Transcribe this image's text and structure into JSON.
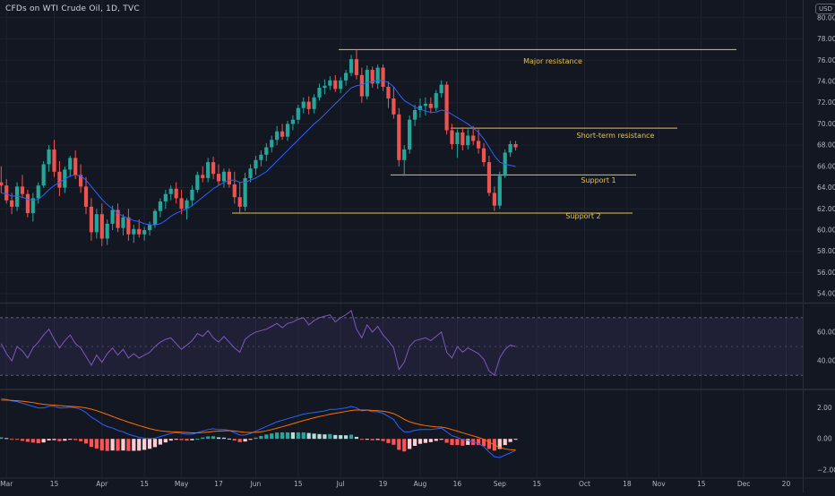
{
  "header": {
    "title": "CFDs on WTI Crude Oil, 1D, TVC",
    "currency_badge": "USD"
  },
  "colors": {
    "background": "#131722",
    "up": "#26a69a",
    "down": "#ef5350",
    "sma": "#2962ff",
    "levels": "#e6c24a",
    "rsi": "#7e57c2",
    "macd": "#2962ff",
    "signal": "#ff6d00"
  },
  "chart_data": [
    {
      "type": "candlestick",
      "name": "price",
      "ylim": [
        53,
        81
      ],
      "yticks": [
        "80.00",
        "78.00",
        "76.00",
        "74.00",
        "72.00",
        "70.00",
        "68.00",
        "66.00",
        "64.00",
        "62.00",
        "60.00",
        "58.00",
        "56.00",
        "54.00"
      ],
      "ytick_values": [
        80,
        78,
        76,
        74,
        72,
        70,
        68,
        66,
        64,
        62,
        60,
        58,
        56,
        54
      ],
      "candles": [
        [
          64.5,
          66,
          63.5,
          64.2
        ],
        [
          64.2,
          64.8,
          62.5,
          62.8
        ],
        [
          62.8,
          63.5,
          61.5,
          62.2
        ],
        [
          62.2,
          64.5,
          61.8,
          64.1
        ],
        [
          64.1,
          65.2,
          63,
          63.4
        ],
        [
          63.4,
          63.8,
          61.2,
          61.6
        ],
        [
          61.6,
          63.5,
          60.8,
          63
        ],
        [
          63,
          64.5,
          62.5,
          64.2
        ],
        [
          64.2,
          66.5,
          64,
          66.2
        ],
        [
          66.2,
          68,
          65.5,
          67.6
        ],
        [
          67.6,
          68.5,
          65,
          65.5
        ],
        [
          65.5,
          66.5,
          63.2,
          64
        ],
        [
          64,
          66,
          63.5,
          65.7
        ],
        [
          65.7,
          67,
          65,
          66.8
        ],
        [
          66.8,
          67.5,
          64.8,
          65.2
        ],
        [
          65.2,
          66.2,
          63.5,
          64.1
        ],
        [
          64.1,
          65,
          61.5,
          62.2
        ],
        [
          62.2,
          63,
          59,
          59.8
        ],
        [
          59.8,
          62,
          59.2,
          61.5
        ],
        [
          61.5,
          62.5,
          58.5,
          59.2
        ],
        [
          59.2,
          61,
          58.6,
          60.6
        ],
        [
          60.6,
          62.3,
          60,
          61.9
        ],
        [
          61.9,
          62.5,
          59.8,
          60.2
        ],
        [
          60.2,
          61.5,
          59.5,
          61.2
        ],
        [
          61.2,
          62,
          59,
          59.6
        ],
        [
          59.6,
          60.5,
          58.8,
          60.1
        ],
        [
          60.1,
          61,
          59.3,
          59.6
        ],
        [
          59.6,
          60.3,
          59,
          60
        ],
        [
          60,
          60.8,
          59.5,
          60.5
        ],
        [
          60.5,
          62,
          60.2,
          61.8
        ],
        [
          61.8,
          63,
          61.2,
          62.7
        ],
        [
          62.7,
          63.8,
          62,
          63.4
        ],
        [
          63.4,
          64.2,
          62.8,
          63.9
        ],
        [
          63.9,
          64.5,
          62.5,
          63
        ],
        [
          63,
          63.8,
          61.5,
          62
        ],
        [
          62,
          63,
          61,
          62.8
        ],
        [
          62.8,
          64.2,
          62.3,
          63.8
        ],
        [
          63.8,
          65.5,
          63.5,
          65.2
        ],
        [
          65.2,
          66,
          64.5,
          64.9
        ],
        [
          64.9,
          66.8,
          64.5,
          66.4
        ],
        [
          66.4,
          66.9,
          64.8,
          65.3
        ],
        [
          65.3,
          66.2,
          64.2,
          64.6
        ],
        [
          64.6,
          65.8,
          64,
          65.5
        ],
        [
          65.5,
          65.8,
          64,
          64.3
        ],
        [
          64.3,
          65.5,
          62.5,
          63.1
        ],
        [
          63.1,
          64.5,
          61.5,
          62.2
        ],
        [
          62.2,
          65.4,
          61.8,
          64.9
        ],
        [
          64.9,
          66.2,
          64.5,
          65.8
        ],
        [
          65.8,
          67,
          65.2,
          66.6
        ],
        [
          66.6,
          67.5,
          66,
          67.1
        ],
        [
          67.1,
          68.2,
          66.5,
          67.8
        ],
        [
          67.8,
          68.9,
          67.3,
          68.5
        ],
        [
          68.5,
          69.8,
          68,
          69.3
        ],
        [
          69.3,
          70,
          68.5,
          68.8
        ],
        [
          68.8,
          70.3,
          68.4,
          70
        ],
        [
          70,
          70.8,
          69.4,
          70.4
        ],
        [
          70.4,
          71.8,
          70,
          71.5
        ],
        [
          71.5,
          72.5,
          71,
          72.1
        ],
        [
          72.1,
          72.6,
          70.9,
          71.4
        ],
        [
          71.4,
          72.8,
          71,
          72.5
        ],
        [
          72.5,
          73.8,
          72.2,
          73.4
        ],
        [
          73.4,
          74.2,
          72.8,
          73.6
        ],
        [
          73.6,
          74.5,
          73.2,
          74.1
        ],
        [
          74.1,
          74.6,
          73,
          73.3
        ],
        [
          73.3,
          74.4,
          72.9,
          74.1
        ],
        [
          74.1,
          75.1,
          73.6,
          74.8
        ],
        [
          74.8,
          76.5,
          74.5,
          76.1
        ],
        [
          76.1,
          77,
          74.2,
          74.6
        ],
        [
          74.6,
          75.3,
          72,
          72.6
        ],
        [
          72.6,
          75.5,
          72.3,
          75.1
        ],
        [
          75.1,
          75.4,
          73.4,
          73.8
        ],
        [
          73.8,
          75.6,
          73.3,
          75.3
        ],
        [
          75.3,
          75.6,
          73.1,
          73.5
        ],
        [
          73.5,
          74,
          71.5,
          72.4
        ],
        [
          72.4,
          73.5,
          70.5,
          70.9
        ],
        [
          70.9,
          71.5,
          66,
          66.6
        ],
        [
          66.6,
          68,
          65.1,
          67.6
        ],
        [
          67.6,
          70.8,
          67.2,
          70.4
        ],
        [
          70.4,
          71.8,
          69.8,
          71.3
        ],
        [
          71.3,
          72.4,
          70.6,
          71.7
        ],
        [
          71.7,
          72.5,
          70.8,
          71.9
        ],
        [
          71.9,
          72.5,
          71,
          71.5
        ],
        [
          71.5,
          73.2,
          71.2,
          72.9
        ],
        [
          72.9,
          74.1,
          72.5,
          73.7
        ],
        [
          73.7,
          74,
          69,
          69.4
        ],
        [
          69.4,
          70,
          67.6,
          68.1
        ],
        [
          68.1,
          69.5,
          66.8,
          69.2
        ],
        [
          69.2,
          69.7,
          67.5,
          68
        ],
        [
          68,
          69.5,
          67.6,
          68.9
        ],
        [
          68.9,
          69.8,
          68,
          68.4
        ],
        [
          68.4,
          69.5,
          67.2,
          67.7
        ],
        [
          67.7,
          68.2,
          66,
          66.4
        ],
        [
          66.4,
          67,
          63.2,
          63.5
        ],
        [
          63.5,
          64.1,
          61.8,
          62.3
        ],
        [
          62.3,
          65.5,
          62,
          65.1
        ],
        [
          65.1,
          67.6,
          64.9,
          67.3
        ],
        [
          67.3,
          68.4,
          66.9,
          68.1
        ],
        [
          68.1,
          68.4,
          67.5,
          67.8
        ]
      ],
      "sma": [
        63.5,
        63.4,
        63.2,
        63.2,
        63.1,
        62.9,
        62.8,
        62.9,
        63.3,
        63.8,
        64.2,
        64.5,
        64.8,
        65.1,
        65.2,
        65.1,
        64.7,
        64.1,
        63.5,
        62.9,
        62.4,
        62,
        61.6,
        61.3,
        61.1,
        60.9,
        60.8,
        60.6,
        60.5,
        60.5,
        60.6,
        60.9,
        61.3,
        61.6,
        61.8,
        62,
        62.3,
        62.7,
        63.1,
        63.5,
        63.9,
        64.2,
        64.5,
        64.7,
        64.7,
        64.5,
        64.5,
        64.7,
        64.9,
        65.2,
        65.5,
        66,
        66.5,
        67,
        67.5,
        68,
        68.5,
        69,
        69.5,
        70,
        70.4,
        70.9,
        71.4,
        71.9,
        72.4,
        72.9,
        73.4,
        73.6,
        73.7,
        73.9,
        74,
        74.1,
        74.1,
        73.9,
        73.5,
        72.8,
        72.2,
        71.9,
        71.6,
        71.4,
        71.2,
        71.1,
        71.1,
        71.3,
        71.2,
        70.9,
        70.6,
        70.3,
        70,
        69.6,
        69.2,
        68.6,
        67.8,
        67,
        66.4,
        66.2,
        66.1,
        66
      ],
      "levels": [
        {
          "label": "Major resistance",
          "value": 77.0
        },
        {
          "label": "Short-term resistance",
          "value": 69.6
        },
        {
          "label": "Support 1",
          "value": 65.2
        },
        {
          "label": "Support 2",
          "value": 61.6
        }
      ]
    },
    {
      "type": "line",
      "name": "rsi",
      "ylim": [
        22,
        78
      ],
      "band": [
        30,
        70
      ],
      "midline": 50,
      "yticks": [
        "60.00",
        "40.00"
      ],
      "ytick_values": [
        60,
        40
      ],
      "values": [
        52,
        45,
        40,
        50,
        47,
        42,
        49,
        53,
        58,
        62,
        55,
        49,
        54,
        58,
        52,
        49,
        43,
        37,
        44,
        39,
        45,
        49,
        44,
        48,
        42,
        45,
        42,
        44,
        46,
        50,
        53,
        55,
        56,
        52,
        48,
        51,
        54,
        59,
        57,
        61,
        56,
        53,
        57,
        53,
        49,
        46,
        55,
        58,
        60,
        61,
        62,
        64,
        66,
        63,
        66,
        67,
        69,
        70,
        65,
        68,
        70,
        71,
        72,
        67,
        70,
        72,
        75,
        62,
        56,
        65,
        60,
        64,
        58,
        54,
        49,
        34,
        39,
        50,
        54,
        55,
        56,
        54,
        57,
        60,
        46,
        42,
        50,
        46,
        49,
        47,
        45,
        41,
        33,
        30,
        42,
        48,
        51,
        50
      ]
    },
    {
      "type": "line",
      "name": "macd",
      "ylim": [
        -2.3,
        2.9
      ],
      "yticks": [
        "2.00",
        "0.00",
        "−2.00"
      ],
      "ytick_values": [
        2,
        0,
        -2
      ],
      "macd": [
        2.6,
        2.55,
        2.45,
        2.4,
        2.3,
        2.2,
        2.1,
        2.0,
        2.0,
        2.1,
        2.1,
        2.0,
        2.0,
        2.05,
        2.0,
        1.9,
        1.7,
        1.4,
        1.2,
        0.95,
        0.8,
        0.7,
        0.55,
        0.45,
        0.3,
        0.2,
        0.1,
        0.05,
        0.02,
        0.05,
        0.15,
        0.25,
        0.35,
        0.4,
        0.35,
        0.3,
        0.3,
        0.4,
        0.5,
        0.6,
        0.65,
        0.6,
        0.6,
        0.55,
        0.4,
        0.25,
        0.25,
        0.35,
        0.5,
        0.65,
        0.8,
        0.95,
        1.1,
        1.2,
        1.3,
        1.4,
        1.5,
        1.6,
        1.65,
        1.7,
        1.75,
        1.8,
        1.9,
        1.9,
        1.95,
        2.0,
        2.1,
        2.0,
        1.8,
        1.85,
        1.75,
        1.75,
        1.65,
        1.45,
        1.25,
        0.75,
        0.45,
        0.45,
        0.55,
        0.6,
        0.6,
        0.6,
        0.65,
        0.7,
        0.45,
        0.2,
        0.1,
        -0.05,
        -0.1,
        -0.2,
        -0.3,
        -0.5,
        -0.85,
        -1.15,
        -1.2,
        -1.05,
        -0.9,
        -0.75
      ],
      "signal": [
        2.5,
        2.5,
        2.48,
        2.46,
        2.43,
        2.39,
        2.34,
        2.28,
        2.23,
        2.2,
        2.18,
        2.15,
        2.12,
        2.1,
        2.08,
        2.05,
        2.0,
        1.92,
        1.82,
        1.7,
        1.58,
        1.45,
        1.32,
        1.2,
        1.08,
        0.97,
        0.86,
        0.76,
        0.66,
        0.58,
        0.52,
        0.48,
        0.46,
        0.45,
        0.43,
        0.41,
        0.39,
        0.39,
        0.41,
        0.44,
        0.48,
        0.5,
        0.52,
        0.53,
        0.51,
        0.46,
        0.42,
        0.41,
        0.42,
        0.46,
        0.52,
        0.6,
        0.69,
        0.78,
        0.88,
        0.98,
        1.08,
        1.18,
        1.27,
        1.36,
        1.44,
        1.51,
        1.59,
        1.65,
        1.71,
        1.77,
        1.83,
        1.87,
        1.86,
        1.86,
        1.84,
        1.82,
        1.79,
        1.72,
        1.63,
        1.46,
        1.26,
        1.1,
        1.0,
        0.92,
        0.86,
        0.81,
        0.78,
        0.76,
        0.7,
        0.6,
        0.5,
        0.39,
        0.29,
        0.19,
        0.09,
        -0.03,
        -0.2,
        -0.39,
        -0.55,
        -0.65,
        -0.7,
        -0.71
      ]
    }
  ],
  "x_axis": {
    "labels": [
      {
        "text": "Mar",
        "i": 1
      },
      {
        "text": "15",
        "i": 10
      },
      {
        "text": "Apr",
        "i": 19
      },
      {
        "text": "15",
        "i": 27
      },
      {
        "text": "May",
        "i": 34
      },
      {
        "text": "17",
        "i": 41
      },
      {
        "text": "Jun",
        "i": 48
      },
      {
        "text": "15",
        "i": 56
      },
      {
        "text": "Jul",
        "i": 64
      },
      {
        "text": "19",
        "i": 72
      },
      {
        "text": "Aug",
        "i": 79
      },
      {
        "text": "16",
        "i": 86
      },
      {
        "text": "Sep",
        "i": 94
      },
      {
        "text": "15",
        "i": 101
      },
      {
        "text": "Oct",
        "i": 110
      },
      {
        "text": "18",
        "i": 118
      },
      {
        "text": "Nov",
        "i": 124
      },
      {
        "text": "15",
        "i": 132
      },
      {
        "text": "Dec",
        "i": 140
      },
      {
        "text": "20",
        "i": 148
      }
    ]
  }
}
